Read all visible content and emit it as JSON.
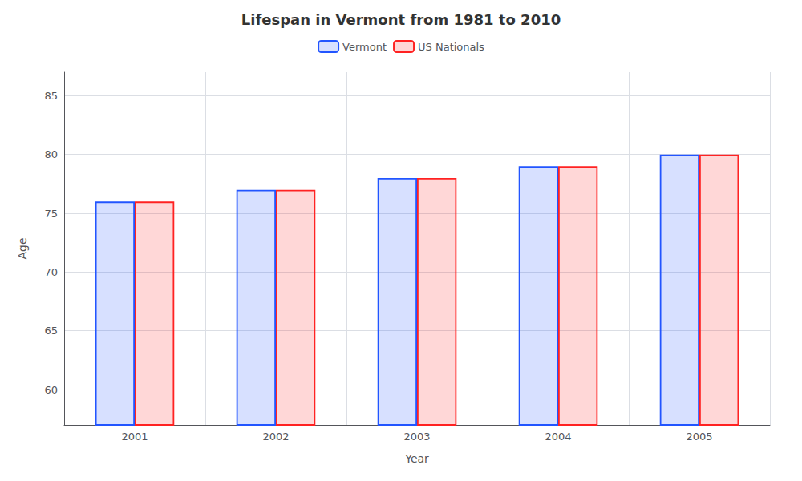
{
  "chart_data": {
    "type": "bar",
    "title": "Lifespan in Vermont from 1981 to 2010",
    "x_label": "Year",
    "y_label": "Age",
    "categories": [
      "2001",
      "2002",
      "2003",
      "2004",
      "2005"
    ],
    "series": [
      {
        "name": "Vermont",
        "color": "#2255ff",
        "values": [
          76,
          77,
          78,
          79,
          80
        ]
      },
      {
        "name": "US Nationals",
        "color": "#ff2222",
        "values": [
          76,
          77,
          78,
          79,
          80
        ]
      }
    ],
    "ylim": [
      57,
      87
    ],
    "yticks": [
      60,
      65,
      70,
      75,
      80,
      85
    ],
    "grid": true,
    "legend": "top"
  }
}
